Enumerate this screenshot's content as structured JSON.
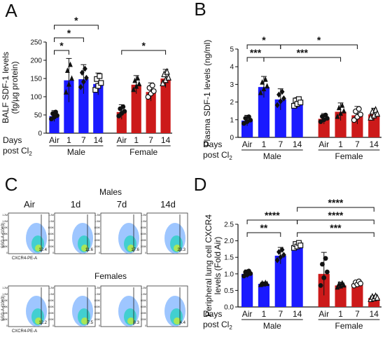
{
  "panels": {
    "A": {
      "letter": "A",
      "ylabel": [
        "BALF SDF-1 levels",
        "(fg/µg protein)"
      ],
      "ylim": [
        0,
        250
      ],
      "yticks": [
        "0",
        "50",
        "100",
        "150",
        "200",
        "250"
      ],
      "row_label_1": "Days",
      "row_label_2": "post Cl",
      "row_label_2_sub": "2",
      "groups": [
        {
          "name": "Male",
          "color": "#1a1aff"
        },
        {
          "name": "Female",
          "color": "#cc1a1a"
        }
      ],
      "bars": [
        {
          "label": "Air",
          "group": 0,
          "value": 47,
          "err": 15,
          "marker": "circle"
        },
        {
          "label": "1",
          "group": 0,
          "value": 145,
          "err": 60,
          "marker": "tri"
        },
        {
          "label": "7",
          "group": 0,
          "value": 148,
          "err": 40,
          "marker": "diamond"
        },
        {
          "label": "14",
          "group": 0,
          "value": 135,
          "err": 30,
          "marker": "square"
        },
        {
          "label": "Air",
          "group": 1,
          "value": 58,
          "err": 20,
          "marker": "circle"
        },
        {
          "label": "1",
          "group": 1,
          "value": 133,
          "err": 25,
          "marker": "tri"
        },
        {
          "label": "7",
          "group": 1,
          "value": 113,
          "err": 25,
          "marker": "circle-o"
        },
        {
          "label": "14",
          "group": 1,
          "value": 150,
          "err": 25,
          "marker": "tri-o"
        }
      ],
      "sig": [
        {
          "from": 0,
          "to": 1,
          "level": 1,
          "text": "*"
        },
        {
          "from": 0,
          "to": 2,
          "level": 2,
          "text": "*"
        },
        {
          "from": 0,
          "to": 3,
          "level": 3,
          "text": "*"
        },
        {
          "from": 4,
          "to": 7,
          "level": 1,
          "text": "*"
        }
      ]
    },
    "B": {
      "letter": "B",
      "ylabel": [
        "Plasma SDF-1 levels (ng/ml)"
      ],
      "ylim": [
        0,
        5
      ],
      "yticks": [
        "0",
        "1",
        "2",
        "3",
        "4",
        "5"
      ],
      "row_label_1": "Days",
      "row_label_2": "post Cl",
      "row_label_2_sub": "2",
      "groups": [
        {
          "name": "Male",
          "color": "#1a1aff"
        },
        {
          "name": "Female",
          "color": "#cc1a1a"
        }
      ],
      "bars": [
        {
          "label": "Air",
          "group": 0,
          "value": 0.95,
          "err": 0.3,
          "marker": "circle"
        },
        {
          "label": "1",
          "group": 0,
          "value": 2.85,
          "err": 0.6,
          "marker": "tri"
        },
        {
          "label": "7",
          "group": 0,
          "value": 2.15,
          "err": 0.6,
          "marker": "diamond"
        },
        {
          "label": "14",
          "group": 0,
          "value": 1.95,
          "err": 0.3,
          "marker": "square"
        },
        {
          "label": "Air",
          "group": 1,
          "value": 1.05,
          "err": 0.3,
          "marker": "circle"
        },
        {
          "label": "1",
          "group": 1,
          "value": 1.45,
          "err": 0.5,
          "marker": "tri"
        },
        {
          "label": "7",
          "group": 1,
          "value": 1.25,
          "err": 0.5,
          "marker": "circle-o"
        },
        {
          "label": "14",
          "group": 1,
          "value": 1.3,
          "err": 0.35,
          "marker": "tri-o"
        }
      ],
      "sig": [
        {
          "from": 0,
          "to": 1,
          "level": 1,
          "text": "***"
        },
        {
          "from": 0,
          "to": 2,
          "level": 2,
          "text": "*"
        },
        {
          "from": 1,
          "to": 5,
          "level": 1,
          "text": "***"
        },
        {
          "from": 2,
          "to": 6,
          "level": 2,
          "text": "*"
        }
      ]
    },
    "D": {
      "letter": "D",
      "ylabel": [
        "Peripheral lung cell CXCR4",
        "levels (Fold Air)"
      ],
      "ylim": [
        0,
        2.5
      ],
      "yticks": [
        "0.0",
        "0.5",
        "1.0",
        "1.5",
        "2.0",
        "2.5"
      ],
      "row_label_1": "Days",
      "row_label_2": "post Cl",
      "row_label_2_sub": "2",
      "groups": [
        {
          "name": "Male",
          "color": "#1a1aff"
        },
        {
          "name": "Female",
          "color": "#cc1a1a"
        }
      ],
      "bars": [
        {
          "label": "Air",
          "group": 0,
          "value": 1.0,
          "err": 0.12,
          "marker": "circle"
        },
        {
          "label": "1",
          "group": 0,
          "value": 0.7,
          "err": 0.05,
          "marker": "tri"
        },
        {
          "label": "7",
          "group": 0,
          "value": 1.55,
          "err": 0.25,
          "marker": "diamond"
        },
        {
          "label": "14",
          "group": 0,
          "value": 1.85,
          "err": 0.12,
          "marker": "square"
        },
        {
          "label": "Air",
          "group": 1,
          "value": 1.0,
          "err": 0.65,
          "marker": "circle"
        },
        {
          "label": "1",
          "group": 1,
          "value": 0.65,
          "err": 0.1,
          "marker": "tri"
        },
        {
          "label": "7",
          "group": 1,
          "value": 0.7,
          "err": 0.1,
          "marker": "circle-o"
        },
        {
          "label": "14",
          "group": 1,
          "value": 0.27,
          "err": 0.07,
          "marker": "tri-o"
        }
      ],
      "sig": [
        {
          "from": 0,
          "to": 2,
          "level": 1,
          "text": "**"
        },
        {
          "from": 0,
          "to": 3,
          "level": 2,
          "text": "****"
        },
        {
          "from": 3,
          "to": 7,
          "level": 1,
          "text": "***"
        },
        {
          "from": 3,
          "to": 7,
          "level": 2,
          "text": "****"
        },
        {
          "from": 3,
          "to": 7,
          "level": 3,
          "text": "****"
        }
      ]
    },
    "C": {
      "letter": "C",
      "males_title": "Males",
      "females_title": "Females",
      "columns": [
        "Air",
        "1d",
        "7d",
        "14d"
      ],
      "y_axis_label": "SSC-A (10^3)",
      "x_axis_label": "CXCR4-PE-A",
      "y_ticks": [
        "1.2M",
        "1.0M",
        "800K",
        "600K",
        "400K",
        "200K",
        "0"
      ],
      "males_values": [
        "12.4",
        "11.6",
        "17.6",
        "23.3"
      ],
      "females_values": [
        "12.2",
        "7.5",
        "8.3",
        "4.4"
      ]
    }
  },
  "chart_data": [
    {
      "type": "bar",
      "title": "",
      "xlabel": "Days post Cl2",
      "ylabel": "BALF SDF-1 levels (fg/µg protein)",
      "categories": [
        "Air",
        "1",
        "7",
        "14"
      ],
      "ylim": [
        0,
        250
      ],
      "series": [
        {
          "name": "Male",
          "values": [
            47,
            145,
            148,
            135
          ]
        },
        {
          "name": "Female",
          "values": [
            58,
            133,
            113,
            150
          ]
        }
      ]
    },
    {
      "type": "bar",
      "title": "",
      "xlabel": "Days post Cl2",
      "ylabel": "Plasma SDF-1 levels (ng/ml)",
      "categories": [
        "Air",
        "1",
        "7",
        "14"
      ],
      "ylim": [
        0,
        5
      ],
      "series": [
        {
          "name": "Male",
          "values": [
            0.95,
            2.85,
            2.15,
            1.95
          ]
        },
        {
          "name": "Female",
          "values": [
            1.05,
            1.45,
            1.25,
            1.3
          ]
        }
      ]
    },
    {
      "type": "bar",
      "title": "",
      "xlabel": "Days post Cl2",
      "ylabel": "Peripheral lung cell CXCR4 levels (Fold Air)",
      "categories": [
        "Air",
        "1",
        "7",
        "14"
      ],
      "ylim": [
        0,
        2.5
      ],
      "series": [
        {
          "name": "Male",
          "values": [
            1.0,
            0.7,
            1.55,
            1.85
          ]
        },
        {
          "name": "Female",
          "values": [
            1.0,
            0.65,
            0.7,
            0.27
          ]
        }
      ]
    }
  ]
}
